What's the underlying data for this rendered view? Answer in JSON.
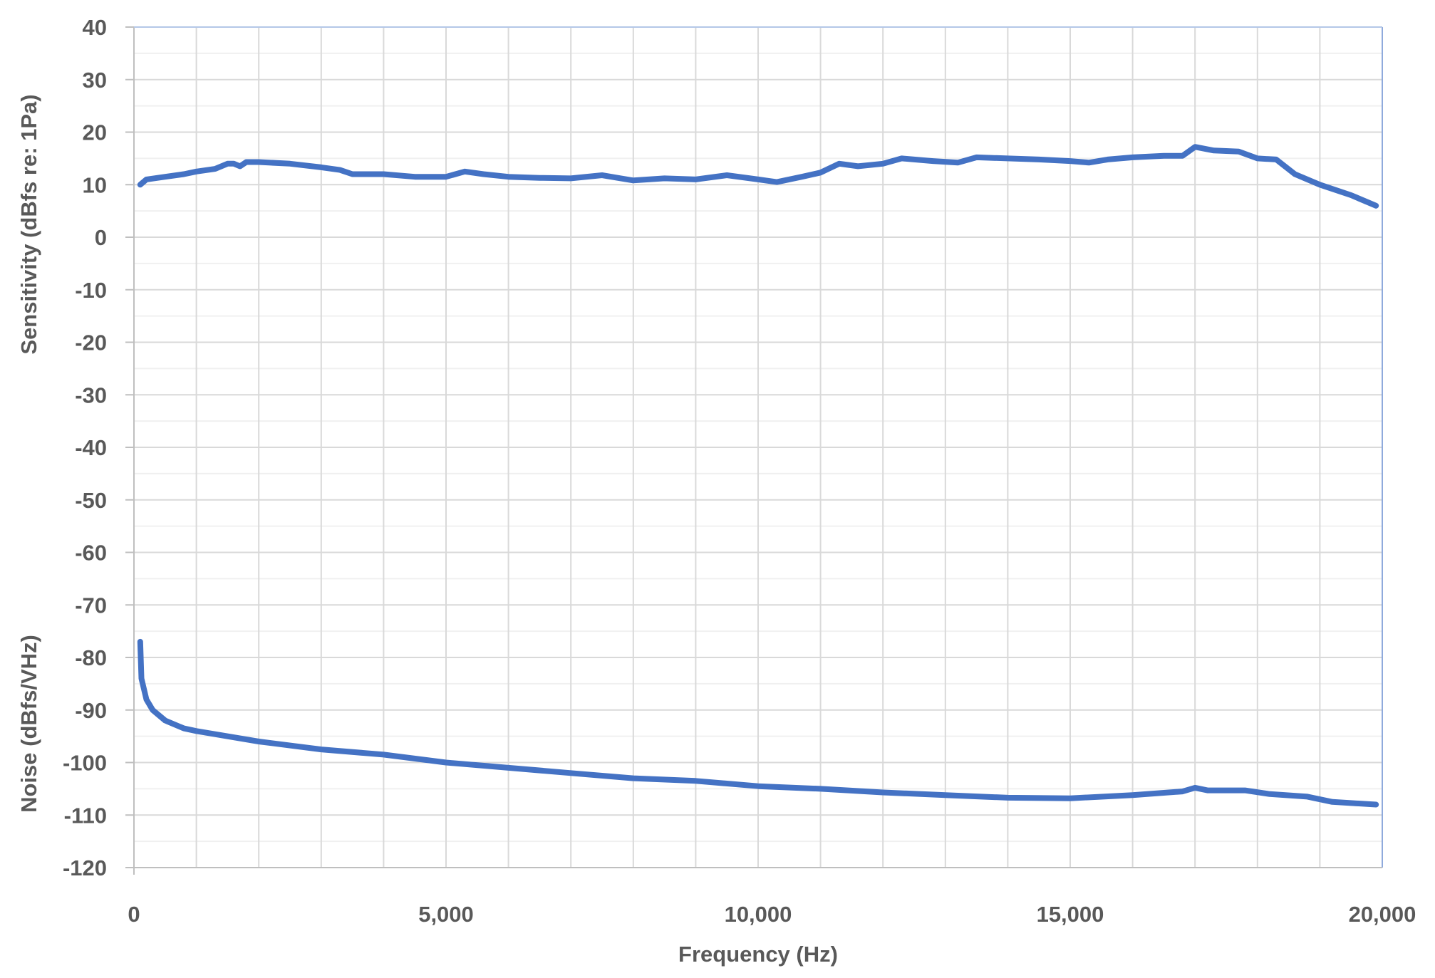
{
  "chart_data": {
    "type": "line",
    "title": "",
    "xlabel": "Frequency (Hz)",
    "ylabels": [
      "Sensitivity (dBfs re: 1Pa)",
      "Noise (dBfs/VHz)"
    ],
    "xlim": [
      0,
      20000
    ],
    "ylim": [
      -120,
      40
    ],
    "xticks": [
      0,
      5000,
      10000,
      15000,
      20000
    ],
    "xtick_labels": [
      "0",
      "5,000",
      "10,000",
      "15,000",
      "20,000"
    ],
    "yticks": [
      40,
      30,
      20,
      10,
      0,
      -10,
      -20,
      -30,
      -40,
      -50,
      -60,
      -70,
      -80,
      -90,
      -100,
      -110,
      -120
    ],
    "ytick_labels": [
      "40",
      "30",
      "20",
      "10",
      "0",
      "-10",
      "-20",
      "-30",
      "-40",
      "-50",
      "-60",
      "-70",
      "-80",
      "-90",
      "-100",
      "-110",
      "-120"
    ],
    "grid": true,
    "color": "#4472C4",
    "series": [
      {
        "x": [
          100,
          200,
          500,
          800,
          1000,
          1300,
          1500,
          1600,
          1700,
          1800,
          2000,
          2500,
          3000,
          3300,
          3500,
          4000,
          4500,
          5000,
          5300,
          5600,
          6000,
          6500,
          7000,
          7500,
          7800,
          8000,
          8500,
          9000,
          9500,
          10000,
          10300,
          10700,
          11000,
          11300,
          11600,
          12000,
          12300,
          12800,
          13200,
          13500,
          14000,
          14500,
          15000,
          15300,
          15600,
          16000,
          16500,
          16800,
          17000,
          17300,
          17700,
          18000,
          18300,
          18600,
          19000,
          19500,
          19900
        ],
        "y": [
          10,
          11,
          11.5,
          12,
          12.5,
          13,
          14,
          14,
          13.5,
          14.3,
          14.3,
          14,
          13.3,
          12.8,
          12,
          12,
          11.5,
          11.5,
          12.5,
          12,
          11.5,
          11.3,
          11.2,
          11.8,
          11.2,
          10.8,
          11.2,
          11,
          11.8,
          11,
          10.5,
          11.5,
          12.3,
          14,
          13.5,
          14,
          15,
          14.5,
          14.2,
          15.2,
          15,
          14.8,
          14.5,
          14.2,
          14.8,
          15.2,
          15.5,
          15.5,
          17.2,
          16.5,
          16.3,
          15,
          14.8,
          12,
          10,
          8,
          6
        ]
      },
      {
        "x": [
          100,
          120,
          200,
          300,
          500,
          800,
          1000,
          2000,
          3000,
          4000,
          5000,
          6000,
          7000,
          8000,
          9000,
          10000,
          11000,
          12000,
          13000,
          14000,
          15000,
          16000,
          16800,
          17000,
          17200,
          17800,
          18200,
          18800,
          19200,
          19900
        ],
        "y": [
          -77,
          -84,
          -88,
          -90,
          -92,
          -93.5,
          -94,
          -96,
          -97.5,
          -98.5,
          -100,
          -101,
          -102,
          -103,
          -103.5,
          -104.5,
          -105,
          -105.7,
          -106.2,
          -106.7,
          -106.8,
          -106.2,
          -105.5,
          -104.8,
          -105.3,
          -105.3,
          -106,
          -106.5,
          -107.5,
          -108
        ]
      }
    ]
  }
}
